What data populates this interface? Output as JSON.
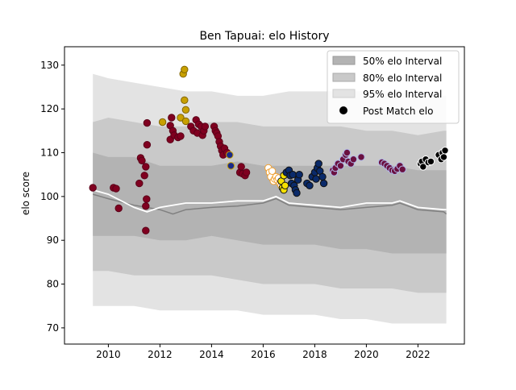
{
  "chart_data": {
    "type": "scatter",
    "title": "Ben Tapuai: elo History",
    "xlabel": "",
    "ylabel": "elo score",
    "xlim": [
      2008.3,
      2023.8
    ],
    "ylim": [
      66.3,
      134.2
    ],
    "x_ticks": [
      2010,
      2012,
      2014,
      2016,
      2018,
      2020,
      2022
    ],
    "y_ticks": [
      70,
      80,
      90,
      100,
      110,
      120,
      130
    ],
    "grid": false,
    "legend_position": "top-right",
    "legend": [
      {
        "label": "50% elo Interval",
        "color": "#b3b3b3"
      },
      {
        "label": "80% elo Interval",
        "color": "#c9c9c9"
      },
      {
        "label": "95% elo Interval",
        "color": "#e3e3e3"
      },
      {
        "label": "Post Match elo",
        "color": "#000000"
      }
    ],
    "bands": {
      "x": [
        2009.4,
        2010.0,
        2011.0,
        2012.0,
        2013.0,
        2014.0,
        2015.0,
        2016.0,
        2017.0,
        2018.0,
        2019.0,
        2020.0,
        2021.0,
        2022.0,
        2023.0,
        2023.1
      ],
      "p95_upper": [
        128,
        127,
        126,
        125,
        124,
        124,
        123,
        123,
        124,
        124,
        124,
        124,
        124,
        123,
        123,
        123
      ],
      "p80_upper": [
        117,
        118,
        117,
        116,
        116,
        117,
        117,
        116,
        116,
        116,
        116,
        115,
        115,
        114,
        115,
        115
      ],
      "p50_upper": [
        110,
        109,
        109,
        107,
        107,
        107,
        108,
        107,
        107,
        107,
        107,
        107,
        107,
        106,
        106,
        106
      ],
      "p50_lower": [
        91,
        91,
        91,
        90,
        90,
        91,
        90,
        89,
        89,
        89,
        88,
        88,
        87,
        87,
        87,
        87
      ],
      "p80_lower": [
        83,
        83,
        82,
        82,
        82,
        82,
        81,
        80,
        80,
        80,
        79,
        79,
        79,
        78,
        78,
        78
      ],
      "p95_lower": [
        75,
        75,
        75,
        74,
        74,
        74,
        74,
        73,
        73,
        73,
        72,
        72,
        71,
        71,
        71,
        71
      ]
    },
    "median_line": {
      "x": [
        2009.4,
        2010.0,
        2011.0,
        2012.0,
        2012.5,
        2013.0,
        2014.0,
        2015.0,
        2016.0,
        2016.5,
        2017.0,
        2018.0,
        2019.0,
        2020.0,
        2021.0,
        2021.3,
        2022.0,
        2023.0,
        2023.1
      ],
      "y": [
        100.5,
        99.5,
        98.0,
        97.0,
        96.0,
        97.0,
        97.5,
        97.8,
        98.5,
        99.5,
        98.0,
        97.5,
        97.0,
        97.5,
        98.0,
        98.5,
        97.0,
        96.5,
        96.0
      ]
    },
    "mean_line": {
      "x": [
        2009.4,
        2010.0,
        2011.0,
        2011.5,
        2012.0,
        2013.0,
        2014.0,
        2015.0,
        2016.0,
        2016.5,
        2017.0,
        2018.0,
        2019.0,
        2020.0,
        2021.0,
        2021.3,
        2022.0,
        2023.0,
        2023.1
      ],
      "y": [
        101.5,
        100.5,
        97.5,
        96.5,
        97.5,
        98.5,
        98.5,
        99.0,
        99.0,
        100.0,
        98.5,
        98.0,
        97.5,
        98.5,
        98.5,
        99.0,
        97.5,
        97.0,
        97.0
      ]
    },
    "series": [
      {
        "color": "#800020",
        "edge": "#5a0018",
        "points": [
          [
            2009.4,
            102.0
          ],
          [
            2010.2,
            102.0
          ],
          [
            2010.3,
            101.8
          ],
          [
            2010.4,
            97.3
          ],
          [
            2011.2,
            103.0
          ],
          [
            2011.25,
            108.8
          ],
          [
            2011.3,
            108.2
          ],
          [
            2011.4,
            104.8
          ],
          [
            2011.45,
            106.8
          ],
          [
            2011.45,
            97.8
          ],
          [
            2011.48,
            99.4
          ],
          [
            2011.45,
            92.2
          ],
          [
            2011.5,
            111.8
          ],
          [
            2011.5,
            116.8
          ],
          [
            2012.4,
            113.0
          ],
          [
            2012.4,
            116.2
          ],
          [
            2012.45,
            118.0
          ],
          [
            2012.5,
            115.0
          ],
          [
            2012.55,
            114.0
          ],
          [
            2012.7,
            113.5
          ],
          [
            2012.8,
            113.8
          ],
          [
            2013.2,
            116.0
          ],
          [
            2013.3,
            115.0
          ],
          [
            2013.4,
            117.5
          ],
          [
            2013.45,
            114.5
          ],
          [
            2013.5,
            116.5
          ],
          [
            2013.6,
            116.0
          ],
          [
            2013.65,
            114.0
          ],
          [
            2013.7,
            115.0
          ],
          [
            2013.75,
            116.0
          ],
          [
            2014.1,
            116.0
          ],
          [
            2014.15,
            115.0
          ],
          [
            2014.2,
            114.5
          ],
          [
            2014.25,
            113.8
          ],
          [
            2014.3,
            112.5
          ],
          [
            2014.35,
            111.5
          ],
          [
            2014.4,
            110.5
          ],
          [
            2014.45,
            109.5
          ],
          [
            2014.5,
            111.0
          ],
          [
            2014.6,
            110.0
          ],
          [
            2015.1,
            105.5
          ],
          [
            2015.15,
            106.8
          ],
          [
            2015.2,
            105.2
          ],
          [
            2015.3,
            104.8
          ],
          [
            2015.35,
            105.5
          ]
        ]
      },
      {
        "color": "#c8a000",
        "edge": "#806400",
        "points": [
          [
            2012.1,
            117.0
          ],
          [
            2012.8,
            118.0
          ],
          [
            2012.9,
            128.0
          ],
          [
            2012.95,
            129.0
          ],
          [
            2012.95,
            122.0
          ],
          [
            2013.0,
            117.2
          ],
          [
            2013.0,
            119.8
          ]
        ]
      },
      {
        "color": "#1a2a8a",
        "edge": "#c8a000",
        "points": [
          [
            2014.7,
            109.5
          ],
          [
            2014.75,
            107.0
          ]
        ]
      },
      {
        "color": "#ffffff",
        "edge": "#f0a030",
        "points": [
          [
            2016.2,
            106.5
          ],
          [
            2016.25,
            105.5
          ],
          [
            2016.3,
            104.5
          ],
          [
            2016.35,
            105.8
          ],
          [
            2016.4,
            103.5
          ],
          [
            2016.45,
            104.0
          ],
          [
            2016.5,
            104.5
          ],
          [
            2016.55,
            103.8
          ],
          [
            2016.6,
            104.2
          ],
          [
            2016.65,
            103.0
          ],
          [
            2016.7,
            102.5
          ]
        ]
      },
      {
        "color": "#f5e000",
        "edge": "#111111",
        "points": [
          [
            2016.7,
            103.5
          ],
          [
            2016.75,
            102.0
          ],
          [
            2016.8,
            101.5
          ],
          [
            2016.8,
            104.8
          ],
          [
            2016.85,
            102.5
          ]
        ]
      },
      {
        "color": "#0a2a6a",
        "edge": "#101010",
        "points": [
          [
            2016.9,
            105.5
          ],
          [
            2017.0,
            106.0
          ],
          [
            2017.05,
            104.8
          ],
          [
            2017.1,
            103.0
          ],
          [
            2017.15,
            105.0
          ],
          [
            2017.2,
            102.5
          ],
          [
            2017.25,
            101.5
          ],
          [
            2017.3,
            100.8
          ],
          [
            2017.35,
            103.8
          ],
          [
            2017.4,
            105.0
          ],
          [
            2017.7,
            103.0
          ],
          [
            2017.8,
            102.5
          ],
          [
            2017.9,
            104.5
          ],
          [
            2018.0,
            105.5
          ],
          [
            2018.05,
            104.0
          ],
          [
            2018.1,
            106.5
          ],
          [
            2018.15,
            107.5
          ],
          [
            2018.2,
            105.8
          ],
          [
            2018.3,
            104.5
          ],
          [
            2018.35,
            103.0
          ]
        ]
      },
      {
        "color": "#6a1040",
        "edge": "#b0b8e8",
        "points": [
          [
            2018.7,
            106.0
          ],
          [
            2018.75,
            105.5
          ],
          [
            2018.8,
            106.5
          ],
          [
            2018.9,
            107.5
          ],
          [
            2019.0,
            107.0
          ],
          [
            2019.1,
            108.5
          ],
          [
            2019.2,
            109.5
          ],
          [
            2019.25,
            110.0
          ],
          [
            2019.3,
            108.0
          ],
          [
            2019.4,
            107.5
          ],
          [
            2019.5,
            108.5
          ],
          [
            2019.8,
            109.0
          ],
          [
            2020.6,
            107.8
          ],
          [
            2020.7,
            107.5
          ],
          [
            2020.8,
            107.0
          ],
          [
            2020.9,
            106.5
          ],
          [
            2021.0,
            106.0
          ],
          [
            2021.1,
            105.8
          ],
          [
            2021.2,
            106.3
          ],
          [
            2021.3,
            107.0
          ],
          [
            2021.4,
            106.2
          ]
        ]
      },
      {
        "color": "#000000",
        "edge": "#ffffff",
        "points": [
          [
            2022.1,
            107.5
          ],
          [
            2022.15,
            108.0
          ],
          [
            2022.2,
            106.8
          ],
          [
            2022.3,
            108.5
          ],
          [
            2022.4,
            107.8
          ],
          [
            2022.5,
            108.0
          ],
          [
            2022.8,
            109.5
          ],
          [
            2022.9,
            108.5
          ],
          [
            2022.95,
            110.0
          ],
          [
            2023.0,
            109.0
          ],
          [
            2023.05,
            110.5
          ]
        ]
      }
    ]
  }
}
